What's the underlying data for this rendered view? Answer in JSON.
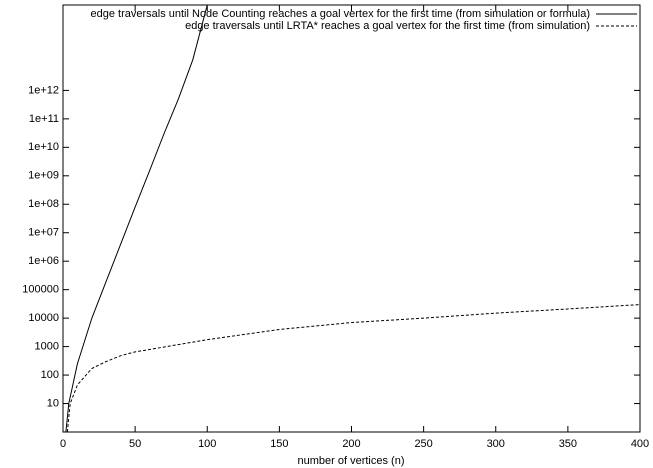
{
  "chart_data": {
    "type": "line",
    "xlabel": "number of vertices (n)",
    "xlim": [
      0,
      400
    ],
    "xticks": [
      0,
      50,
      100,
      150,
      200,
      250,
      300,
      350,
      400
    ],
    "ylim": [
      1,
      1000000000000000.0
    ],
    "yscale": "log",
    "yticks": [
      10,
      100,
      1000,
      10000,
      100000,
      {
        "value": 1000000,
        "label": "1e+06"
      },
      {
        "value": 10000000,
        "label": "1e+07"
      },
      {
        "value": 100000000,
        "label": "1e+08"
      },
      {
        "value": 1000000000,
        "label": "1e+09"
      },
      {
        "value": 10000000000,
        "label": "1e+10"
      },
      {
        "value": 100000000000,
        "label": "1e+11"
      },
      {
        "value": 1000000000000,
        "label": "1e+12"
      }
    ],
    "legend": "top-right",
    "series": [
      {
        "name": "edge traversals until Node Counting reaches a goal vertex for the first time (from simulation or formula)",
        "color": "#000000",
        "style": "solid",
        "x": [
          2,
          4,
          10,
          20,
          30,
          40,
          50,
          60,
          70,
          80,
          90,
          100
        ],
        "values": [
          1,
          10,
          250,
          10000,
          200000,
          4000000,
          80000000,
          1500000000,
          30000000000,
          500000000000,
          12000000000000,
          1000000000000000.0
        ]
      },
      {
        "name": "edge traversals until LRTA* reaches a goal vertex  for the first time (from simulation)",
        "color": "#000000",
        "style": "dashed",
        "x": [
          3,
          5,
          10,
          20,
          30,
          40,
          50,
          100,
          150,
          200,
          250,
          300,
          350,
          400
        ],
        "values": [
          1,
          10,
          45,
          170,
          300,
          480,
          650,
          1750,
          4000,
          7000,
          10000,
          15000,
          21000,
          30000
        ]
      }
    ]
  }
}
